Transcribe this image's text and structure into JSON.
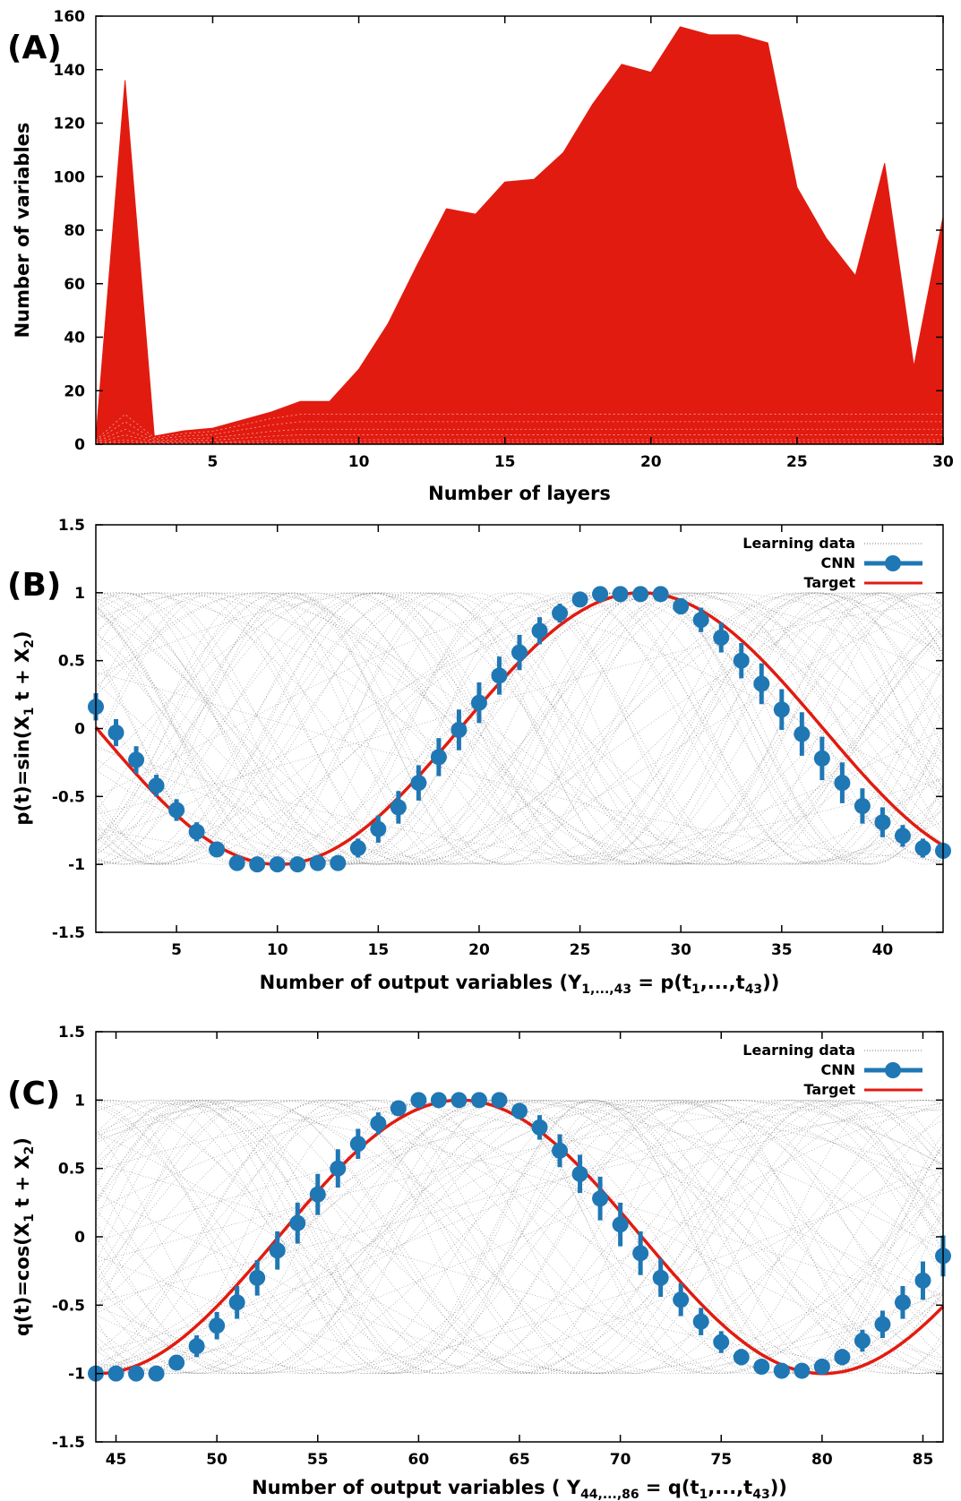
{
  "colors": {
    "area": "#e21b10",
    "cnn": "#1f77b4",
    "target": "#e21b10",
    "learning": "#333333",
    "axis": "#000000"
  },
  "legend": {
    "learning": "Learning data",
    "cnn": "CNN",
    "target": "Target"
  },
  "chart_data": [
    {
      "id": "A",
      "panel_label": "(A)",
      "type": "area",
      "xlabel": "Number of layers",
      "ylabel": "Number of variables",
      "xlim": [
        1,
        30
      ],
      "ylim": [
        0,
        160
      ],
      "xticks": [
        5,
        10,
        15,
        20,
        25,
        30
      ],
      "yticks": [
        0,
        20,
        40,
        60,
        80,
        100,
        120,
        140,
        160
      ],
      "x": [
        1,
        2,
        3,
        4,
        5,
        6,
        7,
        8,
        9,
        10,
        11,
        12,
        13,
        14,
        15,
        16,
        17,
        18,
        19,
        20,
        21,
        22,
        23,
        24,
        25,
        26,
        27,
        28,
        29,
        30
      ],
      "values": [
        2,
        136,
        3,
        5,
        6,
        9,
        12,
        16,
        16,
        28,
        45,
        67,
        88,
        86,
        98,
        99,
        109,
        127,
        142,
        139,
        156,
        153,
        153,
        150,
        96,
        77,
        63,
        105,
        29,
        85
      ]
    },
    {
      "id": "B",
      "panel_label": "(B)",
      "type": "line",
      "xlabel": "Number of output variables (Y",
      "xlabel_sub1": "1,...,43",
      "xlabel_mid": " = p(t",
      "xlabel_sub2": "1",
      "xlabel_mid2": ",...,t",
      "xlabel_sub3": "43",
      "xlabel_end": "))",
      "ylabel": "p(t)=sin(X",
      "ylabel_sub1": "1",
      "ylabel_mid": " t + X",
      "ylabel_sub2": "2",
      "ylabel_end": ")",
      "xlim": [
        1,
        43
      ],
      "ylim": [
        -1.5,
        1.5
      ],
      "xticks": [
        5,
        10,
        15,
        20,
        25,
        30,
        35,
        40
      ],
      "yticks": [
        -1.5,
        -1,
        -0.5,
        0,
        0.5,
        1,
        1.5
      ],
      "target": {
        "func": "sin",
        "freq": 0.1745,
        "phase": -3.3246
      },
      "cnn": {
        "x": [
          1,
          2,
          3,
          4,
          5,
          6,
          7,
          8,
          9,
          10,
          11,
          12,
          13,
          14,
          15,
          16,
          17,
          18,
          19,
          20,
          21,
          22,
          23,
          24,
          25,
          26,
          27,
          28,
          29,
          30,
          31,
          32,
          33,
          34,
          35,
          36,
          37,
          38,
          39,
          40,
          41,
          42,
          43
        ],
        "y": [
          0.16,
          -0.03,
          -0.23,
          -0.42,
          -0.6,
          -0.76,
          -0.89,
          -0.99,
          -1.0,
          -1.0,
          -1.0,
          -0.99,
          -0.99,
          -0.88,
          -0.74,
          -0.58,
          -0.4,
          -0.21,
          -0.01,
          0.19,
          0.39,
          0.56,
          0.72,
          0.85,
          0.95,
          0.99,
          0.99,
          0.99,
          0.99,
          0.9,
          0.8,
          0.67,
          0.5,
          0.33,
          0.14,
          -0.04,
          -0.22,
          -0.4,
          -0.57,
          -0.69,
          -0.79,
          -0.88,
          -0.9
        ],
        "err": [
          0.1,
          0.1,
          0.1,
          0.08,
          0.08,
          0.07,
          0.05,
          0.04,
          0.02,
          0.02,
          0.02,
          0.03,
          0.03,
          0.07,
          0.1,
          0.12,
          0.13,
          0.14,
          0.15,
          0.15,
          0.14,
          0.13,
          0.1,
          0.07,
          0.04,
          0.02,
          0.02,
          0.02,
          0.02,
          0.06,
          0.09,
          0.11,
          0.13,
          0.15,
          0.15,
          0.16,
          0.16,
          0.15,
          0.13,
          0.11,
          0.08,
          0.07,
          0.05
        ]
      }
    },
    {
      "id": "C",
      "panel_label": "(C)",
      "type": "line",
      "xlabel": "Number of output variables ( Y",
      "xlabel_sub1": "44,...,86",
      "xlabel_mid": " = q(t",
      "xlabel_sub2": "1",
      "xlabel_mid2": ",...,t",
      "xlabel_sub3": "43",
      "xlabel_end": "))",
      "ylabel": "q(t)=cos(X",
      "ylabel_sub1": "1",
      "ylabel_mid": " t + X",
      "ylabel_sub2": "2",
      "ylabel_end": ")",
      "xlim": [
        44,
        86
      ],
      "ylim": [
        -1.5,
        1.5
      ],
      "xticks": [
        45,
        50,
        55,
        60,
        65,
        70,
        75,
        80,
        85
      ],
      "yticks": [
        -1.5,
        -1,
        -0.5,
        0,
        0.5,
        1,
        1.5
      ],
      "target": {
        "func": "cos",
        "freq": 0.1745,
        "phase": -10.8295
      },
      "cnn": {
        "x": [
          44,
          45,
          46,
          47,
          48,
          49,
          50,
          51,
          52,
          53,
          54,
          55,
          56,
          57,
          58,
          59,
          60,
          61,
          62,
          63,
          64,
          65,
          66,
          67,
          68,
          69,
          70,
          71,
          72,
          73,
          74,
          75,
          76,
          77,
          78,
          79,
          80,
          81,
          82,
          83,
          84,
          85,
          86
        ],
        "y": [
          -1.0,
          -1.0,
          -1.0,
          -1.0,
          -0.92,
          -0.8,
          -0.65,
          -0.48,
          -0.3,
          -0.1,
          0.1,
          0.31,
          0.5,
          0.68,
          0.83,
          0.94,
          1.0,
          1.0,
          1.0,
          1.0,
          1.0,
          0.92,
          0.8,
          0.63,
          0.46,
          0.28,
          0.09,
          -0.12,
          -0.3,
          -0.46,
          -0.62,
          -0.77,
          -0.88,
          -0.95,
          -0.98,
          -0.98,
          -0.95,
          -0.88,
          -0.76,
          -0.64,
          -0.48,
          -0.32,
          -0.14
        ],
        "err": [
          0.02,
          0.02,
          0.02,
          0.02,
          0.05,
          0.08,
          0.1,
          0.12,
          0.13,
          0.14,
          0.15,
          0.15,
          0.14,
          0.11,
          0.08,
          0.05,
          0.02,
          0.02,
          0.02,
          0.02,
          0.02,
          0.06,
          0.09,
          0.12,
          0.14,
          0.16,
          0.16,
          0.16,
          0.14,
          0.12,
          0.1,
          0.08,
          0.06,
          0.04,
          0.03,
          0.03,
          0.04,
          0.06,
          0.08,
          0.1,
          0.12,
          0.14,
          0.15
        ]
      }
    }
  ]
}
